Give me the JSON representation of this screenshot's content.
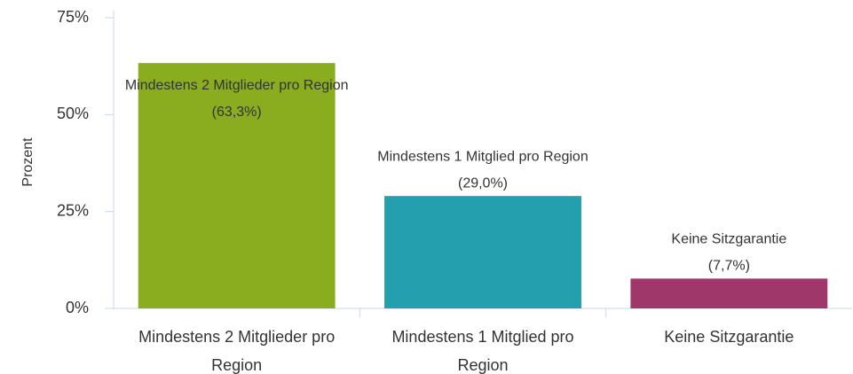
{
  "chart_data": {
    "type": "bar",
    "y_label": "Prozent",
    "categories": [
      "Mindestens 2 Mitglieder pro Region",
      "Mindestens 1 Mitglied pro Region",
      "Keine Sitzgarantie"
    ],
    "values": [
      63.3,
      29.0,
      7.7
    ],
    "value_labels": [
      "(63,3%)",
      "(29,0%)",
      "(7,7%)"
    ],
    "colors": [
      "#8aac1f",
      "#239fae",
      "#a0376a"
    ],
    "ylim": [
      0,
      75
    ],
    "yticks": [
      {
        "value": 0,
        "label": "0%"
      },
      {
        "value": 25,
        "label": "25%"
      },
      {
        "value": 50,
        "label": "50%"
      },
      {
        "value": 75,
        "label": "75%"
      }
    ],
    "grid": false
  }
}
